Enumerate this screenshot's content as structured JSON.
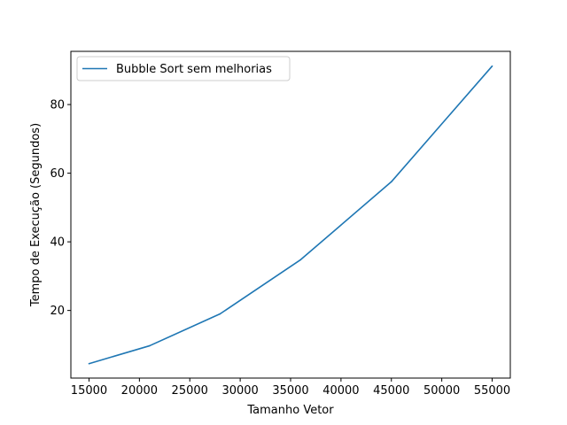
{
  "chart_data": {
    "type": "line",
    "title": "",
    "xlabel": "Tamanho Vetor",
    "ylabel": "Tempo de Execução (Segundos)",
    "xlim": [
      13200,
      56800
    ],
    "ylim": [
      0.3,
      95.5
    ],
    "xticks": [
      15000,
      20000,
      25000,
      30000,
      35000,
      40000,
      45000,
      50000,
      55000
    ],
    "yticks": [
      20,
      40,
      60,
      80
    ],
    "grid": false,
    "legend_position": "top-left",
    "series": [
      {
        "name": "Bubble Sort sem melhorias",
        "color": "#1f77b4",
        "x": [
          15000,
          21000,
          28000,
          36000,
          45000,
          55000
        ],
        "y": [
          4.5,
          9.7,
          19.0,
          34.8,
          57.5,
          91.2
        ]
      }
    ]
  }
}
